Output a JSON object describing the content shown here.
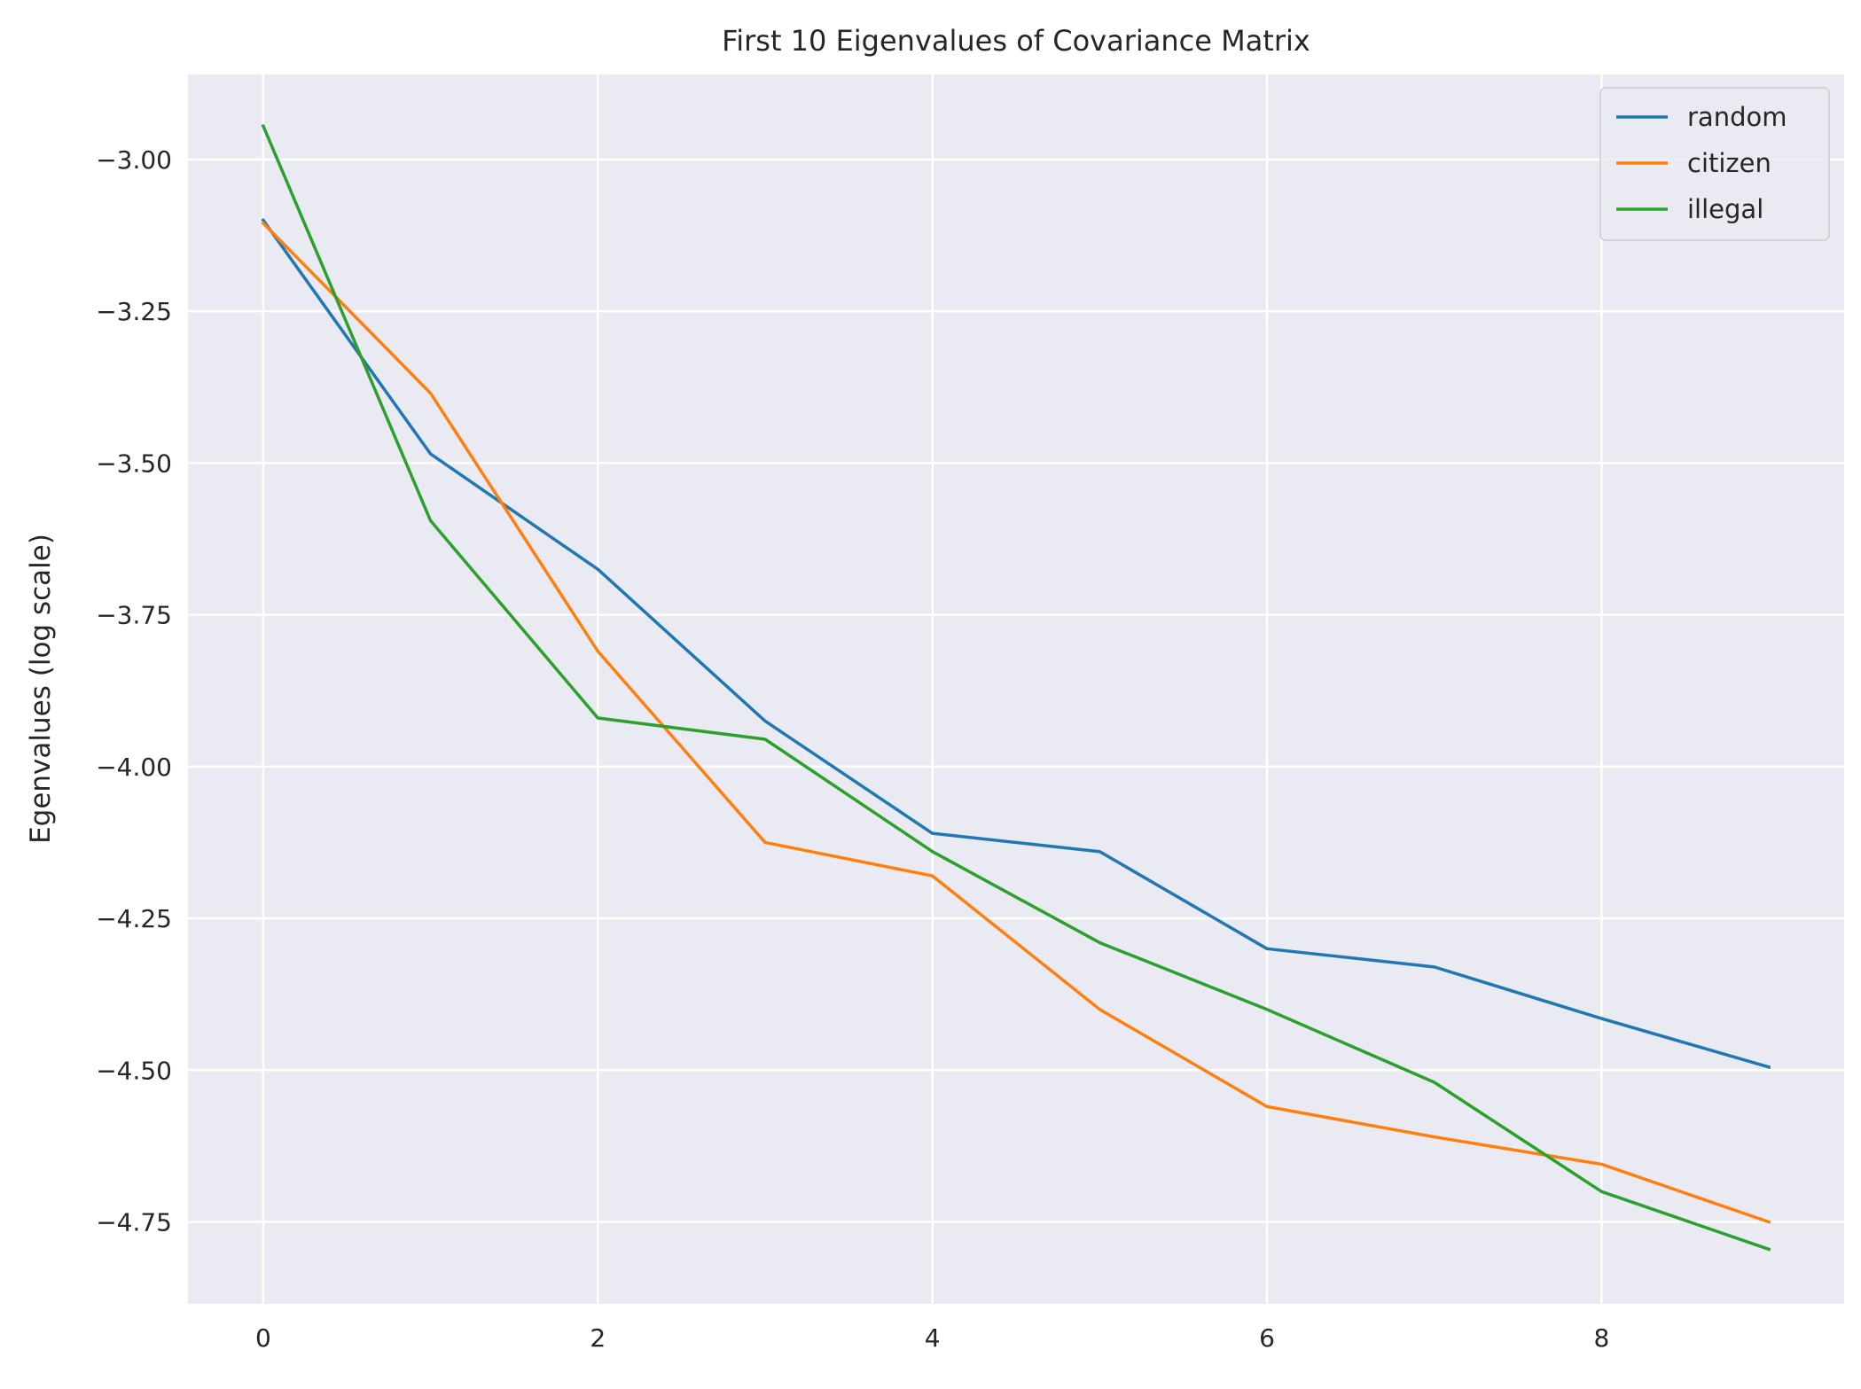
{
  "chart_data": {
    "type": "line",
    "title": "First 10 Eigenvalues of Covariance Matrix",
    "xlabel": "",
    "ylabel": "Egenvalues (log scale)",
    "x": [
      0,
      1,
      2,
      3,
      4,
      5,
      6,
      7,
      8,
      9
    ],
    "xlim": [
      -0.45,
      9.45
    ],
    "ylim": [
      -4.885,
      -2.86
    ],
    "xticks": [
      0,
      2,
      4,
      6,
      8
    ],
    "xtick_labels": [
      "0",
      "2",
      "4",
      "6",
      "8"
    ],
    "yticks": [
      -3.0,
      -3.25,
      -3.5,
      -3.75,
      -4.0,
      -4.25,
      -4.5,
      -4.75
    ],
    "ytick_labels": [
      "−3.00",
      "−3.25",
      "−3.50",
      "−3.75",
      "−4.00",
      "−4.25",
      "−4.50",
      "−4.75"
    ],
    "grid": true,
    "legend_position": "top-right",
    "series": [
      {
        "name": "random",
        "color": "#1f77b4",
        "values": [
          -3.1,
          -3.485,
          -3.675,
          -3.925,
          -4.11,
          -4.14,
          -4.3,
          -4.33,
          -4.415,
          -4.495
        ]
      },
      {
        "name": "citizen",
        "color": "#ff7f0e",
        "values": [
          -3.105,
          -3.385,
          -3.81,
          -4.125,
          -4.18,
          -4.4,
          -4.56,
          -4.61,
          -4.655,
          -4.75
        ]
      },
      {
        "name": "illegal",
        "color": "#2ca02c",
        "values": [
          -2.945,
          -3.595,
          -3.92,
          -3.955,
          -4.14,
          -4.29,
          -4.4,
          -4.52,
          -4.7,
          -4.795
        ]
      }
    ]
  }
}
